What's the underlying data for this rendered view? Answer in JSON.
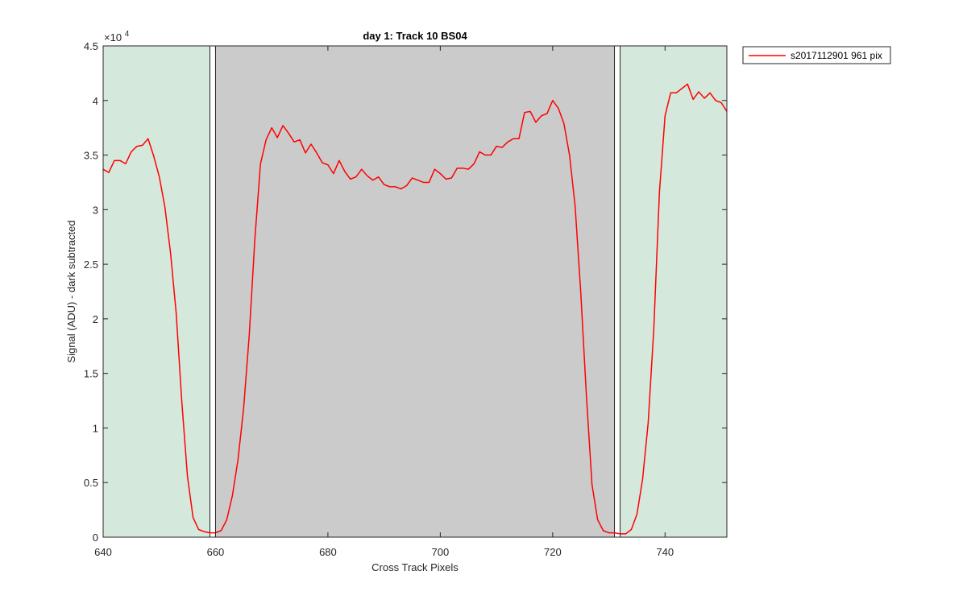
{
  "chart_data": {
    "type": "line",
    "title": "day 1: Track 10  BS04",
    "xlabel": "Cross Track Pixels",
    "ylabel": "Signal (ADU) - dark subtracted",
    "y_exponent_label": "×10",
    "y_exponent_power": "4",
    "xlim": [
      640,
      751
    ],
    "ylim": [
      0,
      4.5
    ],
    "y_scale_factor": 10000,
    "x_ticks": [
      640,
      660,
      680,
      700,
      720,
      740
    ],
    "x_tick_labels": [
      "640",
      "660",
      "680",
      "700",
      "720",
      "740"
    ],
    "y_ticks": [
      0,
      0.5,
      1,
      1.5,
      2,
      2.5,
      3,
      3.5,
      4,
      4.5
    ],
    "y_tick_labels": [
      "0",
      "0.5",
      "1",
      "1.5",
      "2",
      "2.5",
      "3",
      "3.5",
      "4",
      "4.5"
    ],
    "grid": false,
    "legend_position": "outside-top-right",
    "background_regions": [
      {
        "name": "edge-left",
        "x": [
          640,
          659
        ],
        "color": "#d5e8dc"
      },
      {
        "name": "center",
        "x": [
          660,
          731
        ],
        "color": "#cbcbcb"
      },
      {
        "name": "edge-right",
        "x": [
          732,
          751
        ],
        "color": "#d5e8dc"
      }
    ],
    "boundary_markers": [
      {
        "x": [
          659,
          660
        ]
      },
      {
        "x": [
          731,
          732
        ]
      }
    ],
    "series": [
      {
        "name": "s2017112901 961 pix",
        "color": "#ff0000",
        "x": [
          640,
          641,
          642,
          643,
          644,
          645,
          646,
          647,
          648,
          649,
          650,
          651,
          652,
          653,
          654,
          655,
          656,
          657,
          658,
          659,
          660,
          661,
          662,
          663,
          664,
          665,
          666,
          667,
          668,
          669,
          670,
          671,
          672,
          673,
          674,
          675,
          676,
          677,
          678,
          679,
          680,
          681,
          682,
          683,
          684,
          685,
          686,
          687,
          688,
          689,
          690,
          691,
          692,
          693,
          694,
          695,
          696,
          697,
          698,
          699,
          700,
          701,
          702,
          703,
          704,
          705,
          706,
          707,
          708,
          709,
          710,
          711,
          712,
          713,
          714,
          715,
          716,
          717,
          718,
          719,
          720,
          721,
          722,
          723,
          724,
          725,
          726,
          727,
          728,
          729,
          730,
          731,
          732,
          733,
          734,
          735,
          736,
          737,
          738,
          739,
          740,
          741,
          742,
          743,
          744,
          745,
          746,
          747,
          748,
          749,
          750,
          751
        ],
        "values": [
          3.37,
          3.34,
          3.45,
          3.45,
          3.42,
          3.53,
          3.58,
          3.59,
          3.65,
          3.49,
          3.3,
          3.02,
          2.6,
          2.05,
          1.24,
          0.56,
          0.18,
          0.07,
          0.05,
          0.04,
          0.04,
          0.06,
          0.16,
          0.38,
          0.71,
          1.18,
          1.85,
          2.73,
          3.42,
          3.64,
          3.75,
          3.66,
          3.77,
          3.7,
          3.62,
          3.64,
          3.52,
          3.6,
          3.52,
          3.43,
          3.41,
          3.33,
          3.45,
          3.35,
          3.28,
          3.3,
          3.37,
          3.31,
          3.27,
          3.3,
          3.23,
          3.21,
          3.21,
          3.19,
          3.22,
          3.29,
          3.27,
          3.25,
          3.25,
          3.37,
          3.33,
          3.28,
          3.29,
          3.38,
          3.38,
          3.37,
          3.42,
          3.53,
          3.5,
          3.5,
          3.58,
          3.57,
          3.62,
          3.65,
          3.65,
          3.89,
          3.9,
          3.8,
          3.86,
          3.88,
          4.0,
          3.93,
          3.79,
          3.5,
          3.03,
          2.24,
          1.3,
          0.48,
          0.16,
          0.06,
          0.04,
          0.04,
          0.03,
          0.03,
          0.07,
          0.21,
          0.53,
          1.05,
          1.91,
          3.16,
          3.86,
          4.07,
          4.07,
          4.11,
          4.15,
          4.01,
          4.08,
          4.02,
          4.07,
          4.0,
          3.98,
          3.9
        ]
      }
    ]
  }
}
